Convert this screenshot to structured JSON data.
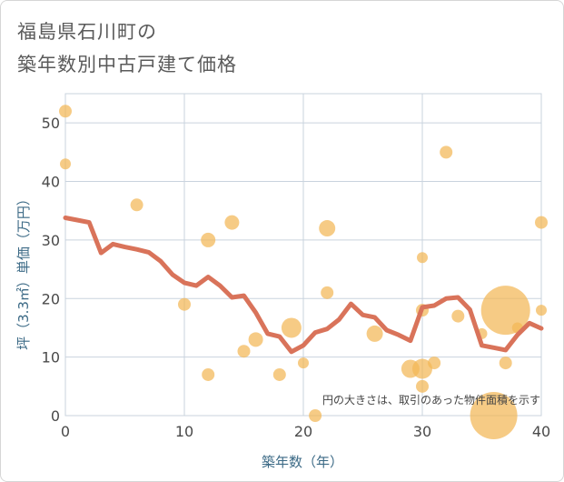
{
  "chart_data": {
    "type": "scatter",
    "title_lines": [
      "福島県石川町の",
      "築年数別中古戸建て価格"
    ],
    "xlabel": "築年数（年）",
    "ylabel": "坪（3.3㎡）単価（万円）",
    "xlim": [
      0,
      40
    ],
    "ylim": [
      0,
      55
    ],
    "xticks": [
      0,
      10,
      20,
      30,
      40
    ],
    "yticks": [
      0,
      10,
      20,
      30,
      40,
      50
    ],
    "grid": true,
    "annotation": "円の大きさは、取引のあった物件面積を示す",
    "colors": {
      "bubble": "#f2b756",
      "line": "#d9735a",
      "grid": "#c9d3de"
    },
    "scatter": [
      {
        "x": 0,
        "y": 52,
        "size": 7
      },
      {
        "x": 0,
        "y": 43,
        "size": 6
      },
      {
        "x": 6,
        "y": 36,
        "size": 7
      },
      {
        "x": 10,
        "y": 19,
        "size": 7
      },
      {
        "x": 12,
        "y": 30,
        "size": 8
      },
      {
        "x": 12,
        "y": 7,
        "size": 7
      },
      {
        "x": 14,
        "y": 33,
        "size": 8
      },
      {
        "x": 15,
        "y": 11,
        "size": 7
      },
      {
        "x": 16,
        "y": 13,
        "size": 8
      },
      {
        "x": 18,
        "y": 7,
        "size": 7
      },
      {
        "x": 19,
        "y": 15,
        "size": 11
      },
      {
        "x": 20,
        "y": 9,
        "size": 6
      },
      {
        "x": 21,
        "y": 0,
        "size": 7
      },
      {
        "x": 22,
        "y": 32,
        "size": 9
      },
      {
        "x": 22,
        "y": 21,
        "size": 7
      },
      {
        "x": 26,
        "y": 14,
        "size": 9
      },
      {
        "x": 29,
        "y": 8,
        "size": 10
      },
      {
        "x": 30,
        "y": 8,
        "size": 11
      },
      {
        "x": 30,
        "y": 5,
        "size": 7
      },
      {
        "x": 30,
        "y": 18,
        "size": 7
      },
      {
        "x": 30,
        "y": 27,
        "size": 6
      },
      {
        "x": 31,
        "y": 9,
        "size": 7
      },
      {
        "x": 32,
        "y": 45,
        "size": 7
      },
      {
        "x": 33,
        "y": 17,
        "size": 7
      },
      {
        "x": 35,
        "y": 14,
        "size": 6
      },
      {
        "x": 36,
        "y": 0,
        "size": 26
      },
      {
        "x": 37,
        "y": 18,
        "size": 27
      },
      {
        "x": 37,
        "y": 9,
        "size": 7
      },
      {
        "x": 38,
        "y": 15,
        "size": 6
      },
      {
        "x": 40,
        "y": 33,
        "size": 7
      },
      {
        "x": 40,
        "y": 18,
        "size": 6
      }
    ],
    "trend": {
      "x": [
        0,
        1,
        2,
        3,
        4,
        5,
        6,
        7,
        8,
        9,
        10,
        11,
        12,
        13,
        14,
        15,
        16,
        17,
        18,
        19,
        20,
        21,
        22,
        23,
        24,
        25,
        26,
        27,
        28,
        29,
        30,
        31,
        32,
        33,
        34,
        35,
        36,
        37,
        38,
        39,
        40
      ],
      "y": [
        33.8,
        33.4,
        33.0,
        27.8,
        29.3,
        28.8,
        28.4,
        27.9,
        26.4,
        24.1,
        22.7,
        22.2,
        23.7,
        22.2,
        20.2,
        20.5,
        17.6,
        14.0,
        13.5,
        10.9,
        12.0,
        14.2,
        14.8,
        16.4,
        19.1,
        17.2,
        16.8,
        14.6,
        13.8,
        12.8,
        18.5,
        18.8,
        20.0,
        20.2,
        18.1,
        12.0,
        11.6,
        11.2,
        13.8,
        15.8,
        14.9
      ]
    }
  }
}
